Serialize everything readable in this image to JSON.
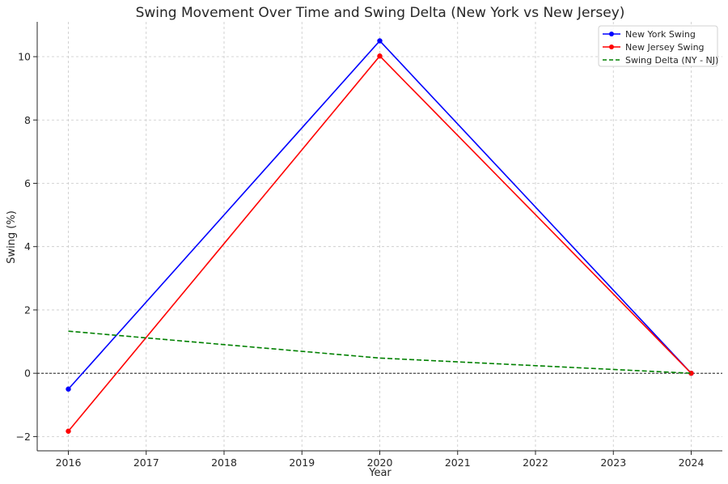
{
  "chart_data": {
    "type": "line",
    "title": "Swing Movement Over Time and Swing Delta (New York vs New Jersey)",
    "xlabel": "Year",
    "ylabel": "Swing (%)",
    "xlim": [
      2015.6,
      2024.4
    ],
    "ylim": [
      -2.45,
      11.1
    ],
    "xticks": [
      2016,
      2017,
      2018,
      2019,
      2020,
      2021,
      2022,
      2023,
      2024
    ],
    "yticks": [
      -2,
      0,
      2,
      4,
      6,
      8,
      10
    ],
    "ytick_labels": [
      "−2",
      "0",
      "2",
      "4",
      "6",
      "8",
      "10"
    ],
    "grid": true,
    "legend_position": "top-right",
    "zero_line": {
      "y": 0,
      "color": "#000000",
      "style": "dashed"
    },
    "series": [
      {
        "name": "New York Swing",
        "color": "#0000ff",
        "style": "solid",
        "markers": true,
        "x": [
          2016,
          2020,
          2024
        ],
        "y": [
          -0.5,
          10.5,
          0.0
        ]
      },
      {
        "name": "New Jersey Swing",
        "color": "#ff0000",
        "style": "solid",
        "markers": true,
        "x": [
          2016,
          2020,
          2024
        ],
        "y": [
          -1.83,
          10.02,
          0.0
        ]
      },
      {
        "name": "Swing Delta (NY - NJ)",
        "color": "#008000",
        "style": "dashed",
        "markers": false,
        "x": [
          2016,
          2020,
          2024
        ],
        "y": [
          1.33,
          0.48,
          0.0
        ]
      }
    ]
  }
}
